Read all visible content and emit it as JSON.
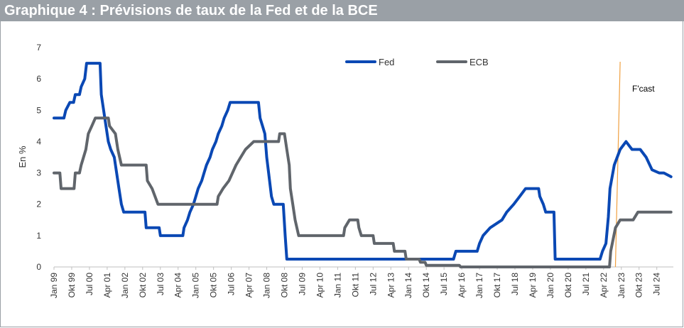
{
  "title": "Graphique 4 : Prévisions de taux de la Fed et de la BCE",
  "chart_data": {
    "type": "line",
    "ylabel": "En %",
    "ylim": [
      0,
      7
    ],
    "yticks": [
      0,
      1,
      2,
      3,
      4,
      5,
      6,
      7
    ],
    "xlim": [
      1999.0,
      2025.2
    ],
    "x_tick_labels": [
      {
        "label": "Jan 99",
        "x": 1999.0
      },
      {
        "label": "Okt 99",
        "x": 1999.75
      },
      {
        "label": "Jul 00",
        "x": 2000.5
      },
      {
        "label": "Apr 01",
        "x": 2001.25
      },
      {
        "label": "Jan 02",
        "x": 2002.0
      },
      {
        "label": "Okt 02",
        "x": 2002.75
      },
      {
        "label": "Jul 03",
        "x": 2003.5
      },
      {
        "label": "Apr 04",
        "x": 2004.25
      },
      {
        "label": "Jan 05",
        "x": 2005.0
      },
      {
        "label": "Okt 05",
        "x": 2005.75
      },
      {
        "label": "Jul 06",
        "x": 2006.5
      },
      {
        "label": "Apr 07",
        "x": 2007.25
      },
      {
        "label": "Jan 08",
        "x": 2008.0
      },
      {
        "label": "Okt 08",
        "x": 2008.75
      },
      {
        "label": "Jul 09",
        "x": 2009.5
      },
      {
        "label": "Apr 10",
        "x": 2010.25
      },
      {
        "label": "Jan 11",
        "x": 2011.0
      },
      {
        "label": "Okt 11",
        "x": 2011.75
      },
      {
        "label": "Jul 12",
        "x": 2012.5
      },
      {
        "label": "Apr 13",
        "x": 2013.25
      },
      {
        "label": "Jan 14",
        "x": 2014.0
      },
      {
        "label": "Okt 14",
        "x": 2014.75
      },
      {
        "label": "Jul 15",
        "x": 2015.5
      },
      {
        "label": "Apr 16",
        "x": 2016.25
      },
      {
        "label": "Jan 17",
        "x": 2017.0
      },
      {
        "label": "Okt 17",
        "x": 2017.75
      },
      {
        "label": "Jul 18",
        "x": 2018.5
      },
      {
        "label": "Apr 19",
        "x": 2019.25
      },
      {
        "label": "Jan 20",
        "x": 2020.0
      },
      {
        "label": "Okt 20",
        "x": 2020.75
      },
      {
        "label": "Jul 21",
        "x": 2021.5
      },
      {
        "label": "Apr 22",
        "x": 2022.25
      },
      {
        "label": "Jan 23",
        "x": 2023.0
      },
      {
        "label": "Okt 23",
        "x": 2023.75
      },
      {
        "label": "Jul 24",
        "x": 2024.5
      }
    ],
    "legend_placement": "top-center",
    "grid": false,
    "forecast_line": {
      "label": "F'cast",
      "x_bottom": 2022.75,
      "x_top": 2022.95,
      "color": "#f0a040"
    },
    "series": [
      {
        "name": "Fed",
        "color": "#0a48b4",
        "points": [
          [
            1999.0,
            4.75
          ],
          [
            1999.42,
            4.75
          ],
          [
            1999.5,
            5.0
          ],
          [
            1999.67,
            5.25
          ],
          [
            1999.83,
            5.25
          ],
          [
            1999.9,
            5.5
          ],
          [
            2000.08,
            5.5
          ],
          [
            2000.15,
            5.75
          ],
          [
            2000.3,
            6.0
          ],
          [
            2000.38,
            6.5
          ],
          [
            2000.95,
            6.5
          ],
          [
            2001.0,
            5.5
          ],
          [
            2001.1,
            5.0
          ],
          [
            2001.2,
            4.5
          ],
          [
            2001.3,
            4.0
          ],
          [
            2001.4,
            3.75
          ],
          [
            2001.55,
            3.5
          ],
          [
            2001.65,
            3.0
          ],
          [
            2001.75,
            2.5
          ],
          [
            2001.85,
            2.0
          ],
          [
            2001.95,
            1.75
          ],
          [
            2002.85,
            1.75
          ],
          [
            2002.9,
            1.25
          ],
          [
            2003.45,
            1.25
          ],
          [
            2003.5,
            1.0
          ],
          [
            2004.45,
            1.0
          ],
          [
            2004.5,
            1.25
          ],
          [
            2004.65,
            1.5
          ],
          [
            2004.75,
            1.75
          ],
          [
            2004.9,
            2.0
          ],
          [
            2005.0,
            2.25
          ],
          [
            2005.1,
            2.5
          ],
          [
            2005.25,
            2.75
          ],
          [
            2005.35,
            3.0
          ],
          [
            2005.45,
            3.25
          ],
          [
            2005.6,
            3.5
          ],
          [
            2005.7,
            3.75
          ],
          [
            2005.85,
            4.0
          ],
          [
            2005.95,
            4.25
          ],
          [
            2006.1,
            4.5
          ],
          [
            2006.2,
            4.75
          ],
          [
            2006.35,
            5.0
          ],
          [
            2006.45,
            5.25
          ],
          [
            2007.65,
            5.25
          ],
          [
            2007.72,
            4.75
          ],
          [
            2007.82,
            4.5
          ],
          [
            2007.92,
            4.25
          ],
          [
            2008.0,
            3.5
          ],
          [
            2008.08,
            3.0
          ],
          [
            2008.2,
            2.25
          ],
          [
            2008.3,
            2.0
          ],
          [
            2008.7,
            2.0
          ],
          [
            2008.78,
            1.0
          ],
          [
            2008.85,
            0.25
          ],
          [
            2015.9,
            0.25
          ],
          [
            2016.0,
            0.5
          ],
          [
            2016.9,
            0.5
          ],
          [
            2017.0,
            0.75
          ],
          [
            2017.15,
            1.0
          ],
          [
            2017.45,
            1.25
          ],
          [
            2017.95,
            1.5
          ],
          [
            2018.15,
            1.75
          ],
          [
            2018.45,
            2.0
          ],
          [
            2018.7,
            2.25
          ],
          [
            2018.95,
            2.5
          ],
          [
            2019.5,
            2.5
          ],
          [
            2019.55,
            2.25
          ],
          [
            2019.7,
            2.0
          ],
          [
            2019.8,
            1.75
          ],
          [
            2020.15,
            1.75
          ],
          [
            2020.2,
            0.25
          ],
          [
            2022.1,
            0.25
          ],
          [
            2022.2,
            0.5
          ],
          [
            2022.35,
            0.75
          ],
          [
            2022.45,
            1.6
          ],
          [
            2022.52,
            2.5
          ],
          [
            2022.7,
            3.25
          ],
          [
            2022.95,
            3.75
          ],
          [
            2023.2,
            4.0
          ],
          [
            2023.45,
            3.75
          ],
          [
            2023.8,
            3.75
          ],
          [
            2024.05,
            3.5
          ],
          [
            2024.3,
            3.1
          ],
          [
            2024.6,
            3.0
          ],
          [
            2024.8,
            3.0
          ],
          [
            2025.1,
            2.88
          ]
        ]
      },
      {
        "name": "ECB",
        "color": "#60656b",
        "points": [
          [
            1999.0,
            3.0
          ],
          [
            1999.25,
            3.0
          ],
          [
            1999.3,
            2.5
          ],
          [
            1999.85,
            2.5
          ],
          [
            1999.9,
            3.0
          ],
          [
            2000.08,
            3.0
          ],
          [
            2000.15,
            3.25
          ],
          [
            2000.25,
            3.5
          ],
          [
            2000.35,
            3.75
          ],
          [
            2000.45,
            4.25
          ],
          [
            2000.6,
            4.5
          ],
          [
            2000.75,
            4.75
          ],
          [
            2001.3,
            4.75
          ],
          [
            2001.35,
            4.5
          ],
          [
            2001.6,
            4.25
          ],
          [
            2001.7,
            3.75
          ],
          [
            2001.85,
            3.25
          ],
          [
            2002.9,
            3.25
          ],
          [
            2002.95,
            2.75
          ],
          [
            2003.15,
            2.5
          ],
          [
            2003.4,
            2.0
          ],
          [
            2005.9,
            2.0
          ],
          [
            2005.95,
            2.25
          ],
          [
            2006.15,
            2.5
          ],
          [
            2006.4,
            2.75
          ],
          [
            2006.55,
            3.0
          ],
          [
            2006.7,
            3.25
          ],
          [
            2006.9,
            3.5
          ],
          [
            2007.1,
            3.75
          ],
          [
            2007.45,
            4.0
          ],
          [
            2008.5,
            4.0
          ],
          [
            2008.55,
            4.25
          ],
          [
            2008.75,
            4.25
          ],
          [
            2008.85,
            3.75
          ],
          [
            2008.95,
            3.25
          ],
          [
            2009.0,
            2.5
          ],
          [
            2009.1,
            2.0
          ],
          [
            2009.2,
            1.5
          ],
          [
            2009.35,
            1.0
          ],
          [
            2011.25,
            1.0
          ],
          [
            2011.3,
            1.25
          ],
          [
            2011.5,
            1.5
          ],
          [
            2011.85,
            1.5
          ],
          [
            2011.9,
            1.25
          ],
          [
            2012.0,
            1.0
          ],
          [
            2012.5,
            1.0
          ],
          [
            2012.55,
            0.75
          ],
          [
            2013.35,
            0.75
          ],
          [
            2013.4,
            0.5
          ],
          [
            2013.85,
            0.5
          ],
          [
            2013.9,
            0.25
          ],
          [
            2014.45,
            0.25
          ],
          [
            2014.5,
            0.15
          ],
          [
            2014.7,
            0.15
          ],
          [
            2014.75,
            0.05
          ],
          [
            2016.15,
            0.05
          ],
          [
            2016.2,
            0.0
          ],
          [
            2022.5,
            0.0
          ],
          [
            2022.55,
            0.5
          ],
          [
            2022.75,
            1.25
          ],
          [
            2022.95,
            1.5
          ],
          [
            2023.5,
            1.5
          ],
          [
            2023.7,
            1.75
          ],
          [
            2025.1,
            1.75
          ]
        ]
      }
    ]
  }
}
